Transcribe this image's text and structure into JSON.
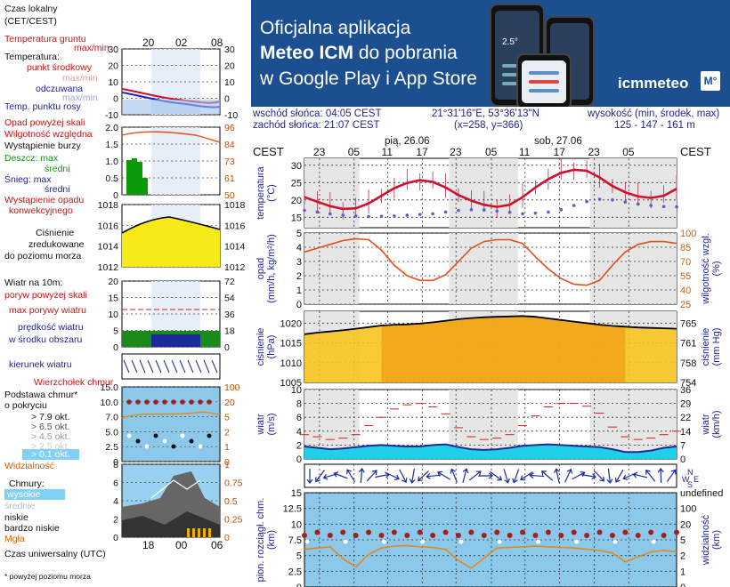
{
  "ad": {
    "line1": "Oficjalna aplikacja",
    "line2a": "Meteo ICM",
    "line2b": " do pobrania",
    "line3": "w Google Play i App Store",
    "logo": "icmmeteo",
    "logo_box": "M°",
    "phone_temp": "2.5°"
  },
  "legend": {
    "time_local": "Czas lokalny",
    "time_local2": "(CET/CEST)",
    "ground_temp": "Temperatura gruntu",
    "maxmin": "max/min",
    "temperature": "Temperatura:",
    "midpoint": "punkt środkowy",
    "maxmin2": "max/min",
    "feels": "odczuwana",
    "maxmin3": "max/min",
    "dew": "Temp. punktu rosy",
    "precip_thr": "Opad powyżej skali",
    "humidity": "Wilgotność względna",
    "storm": "Wystąpienie burzy",
    "rain": "Deszcz: max",
    "mean": "średni",
    "snow": "Śnieg: max",
    "mean2": "średni",
    "conv": "Wystąpienie opadu",
    "conv2": "konwekcyjnego",
    "pressure1": "Ciśnienie",
    "pressure2": "zredukowane",
    "pressure3": "do poziomu morza",
    "wind_title": "Wiatr na 10m:",
    "gust_thr": "poryw powyżej skali",
    "gust_max": "max porywy wiatru",
    "wind_speed": "prędkość wiatru",
    "wind_area": "w środku obszaru",
    "wind_dir": "kierunek wiatru",
    "cloud_top": "Wierzchołek chmur",
    "cloud_base": "Podstawa chmur*",
    "cloud_base2": "o pokryciu",
    "okt79": "> 7.9 okt.",
    "okt65": "> 6.5 okt.",
    "okt45": "> 4.5 okt.",
    "okt25": "> 2.5 okt.",
    "okt01": "> 0.1 okt.",
    "visibility": "Widzialność",
    "clouds": "Chmury:",
    "high": "wysokie",
    "mid": "średnie",
    "low": "niskie",
    "vlow": "bardzo niskie",
    "fog": "Mgła",
    "utc": "Czas uniwersalny (UTC)",
    "footnote": "* powyżej poziomu morza",
    "top_ticks": [
      "20",
      "02",
      "08"
    ],
    "bottom_ticks": [
      "18",
      "00",
      "06"
    ]
  },
  "info": {
    "sunrise": "wschód słońca: 04:05 CEST",
    "sunset": "zachód słońca: 21:07 CEST",
    "coords": "21°31'16\"E, 53°36'13\"N",
    "grid": "(x=258,  y=366)",
    "alt_label": "wysokość (min, środek, max)",
    "alt_values": "125 - 147 - 161 m"
  },
  "chart_data": {
    "type": "line",
    "days": [
      "pią, 26.06",
      "sob, 27.06"
    ],
    "tz": "CEST",
    "x_ticks": [
      "23",
      "05",
      "11",
      "17",
      "23",
      "05",
      "11",
      "17",
      "23",
      "05"
    ],
    "panels": {
      "temperature": {
        "ylabel": "temperatura\n(°C)",
        "ylim": [
          12,
          32
        ],
        "ticks": [
          15,
          20,
          25,
          30
        ],
        "series": [
          {
            "name": "punkt środkowy",
            "values": [
              20.8,
              19.5,
              18.2,
              17.4,
              17.6,
              19.0,
              21.2,
              23.4,
              24.9,
              25.7,
              25.2,
              23.6,
              21.4,
              19.8,
              18.6,
              18.0,
              18.6,
              20.8,
              23.6,
              26.0,
              27.8,
              28.7,
              28.4,
              26.5,
              24.0,
              22.2,
              21.0,
              20.6,
              21.2,
              23.2
            ]
          },
          {
            "name": "dew",
            "values": [
              17,
              16.5,
              16,
              15.6,
              15.4,
              15.2,
              15.3,
              15.4,
              15.6,
              15.8,
              16.0,
              16.5,
              17,
              17.2,
              17.1,
              16.8,
              16.4,
              16.0,
              16.2,
              16.5,
              17.2,
              18.4,
              19.5,
              20.2,
              20.0,
              19.4,
              18.8,
              18.4,
              18.1,
              18.0
            ]
          }
        ]
      },
      "precipitation": {
        "ylabel": "opad\n(mm/h, kg/m²/h)",
        "ylim": [
          0,
          5
        ],
        "ticks": [
          0,
          1,
          2,
          3,
          4,
          5
        ],
        "right_label": "wilgotność wzgl.\n(%)",
        "right_ticks": [
          25,
          40,
          55,
          70,
          85,
          100
        ],
        "series": [
          {
            "name": "wilgotność",
            "values": [
              80,
              84,
              88,
              92,
              94,
              93,
              82,
              66,
              55,
              50,
              50,
              56,
              70,
              84,
              91,
              93,
              93,
              89,
              75,
              62,
              52,
              46,
              45,
              50,
              66,
              80,
              88,
              91,
              91,
              89
            ]
          }
        ]
      },
      "pressure": {
        "ylabel": "ciśnienie\n(hPa)",
        "ylim": [
          1005,
          1023
        ],
        "ticks": [
          1005,
          1010,
          1015,
          1020
        ],
        "right_label": "ciśnienie\n(mm Hg)",
        "right_ticks": [
          754,
          758,
          761,
          765
        ],
        "series": [
          {
            "name": "ciśnienie",
            "values": [
              1017.2,
              1017.6,
              1017.9,
              1018.2,
              1018.6,
              1019.0,
              1019.4,
              1019.6,
              1019.7,
              1019.9,
              1020.2,
              1020.6,
              1021.0,
              1021.3,
              1021.5,
              1021.6,
              1021.7,
              1021.8,
              1021.6,
              1021.2,
              1020.8,
              1020.4,
              1020.0,
              1019.6,
              1019.3,
              1019.1,
              1018.9,
              1018.8,
              1018.7,
              1018.6
            ]
          }
        ]
      },
      "wind": {
        "ylabel": "wiatr\n(m/s)",
        "ylim": [
          0,
          10
        ],
        "ticks": [
          0,
          2,
          4,
          6,
          8,
          10
        ],
        "right_label": "wiatr\n(km/h)",
        "right_ticks": [
          0,
          7,
          14,
          22,
          29,
          36
        ],
        "series": [
          {
            "name": "prędkość",
            "values": [
              1.8,
              1.6,
              1.4,
              1.5,
              1.7,
              1.9,
              2.0,
              1.9,
              1.8,
              1.8,
              2.0,
              2.1,
              1.7,
              1.4,
              1.3,
              1.4,
              1.6,
              1.9,
              2.0,
              2.1,
              2.0,
              1.9,
              1.8,
              1.7,
              1.4,
              1.0,
              1.0,
              1.2,
              1.6,
              1.8
            ]
          },
          {
            "name": "porywy",
            "values": [
              3.5,
              3.2,
              2.8,
              3.0,
              3.5,
              4.8,
              6.0,
              7.2,
              7.8,
              8.0,
              7.5,
              6.5,
              4.5,
              3.2,
              2.8,
              3.0,
              3.5,
              4.8,
              6.2,
              7.5,
              8.0,
              8.0,
              7.6,
              6.6,
              4.6,
              3.2,
              2.8,
              3.0,
              3.5,
              4.0
            ]
          }
        ]
      },
      "clouds": {
        "ylabel": "pion. rozciągł. chm.\n(km)",
        "ylim": [
          0,
          15
        ],
        "ticks": [
          0,
          2.5,
          5.0,
          7.5,
          10.0,
          12.5,
          15.0
        ],
        "right_label": "widzialność\n(km)",
        "right_ticks": [
          0,
          1,
          2,
          5,
          20,
          100
        ]
      }
    }
  }
}
